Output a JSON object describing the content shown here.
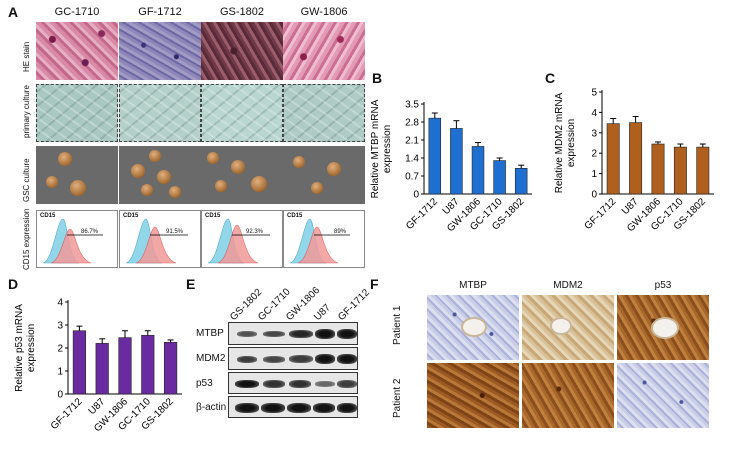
{
  "panel_letters": {
    "A": "A",
    "B": "B",
    "C": "C",
    "D": "D",
    "E": "E",
    "F": "F"
  },
  "panel_a": {
    "columns": [
      "GC-1710",
      "GF-1712",
      "GS-1802",
      "GW-1806"
    ],
    "rows": [
      "HE stain",
      "primary culture",
      "GSC culture",
      "CD15 expression"
    ],
    "flow_marker": "CD15",
    "flow_percents": [
      "86.7%",
      "91.5%",
      "92.3%",
      "89%"
    ]
  },
  "chart_data": [
    {
      "panel": "B",
      "type": "bar",
      "categories": [
        "GF-1712",
        "U87",
        "GW-1806",
        "GC-1710",
        "GS-1802"
      ],
      "values": [
        2.95,
        2.55,
        1.85,
        1.3,
        1.0
      ],
      "errors": [
        0.2,
        0.3,
        0.15,
        0.1,
        0.12
      ],
      "ylabel": "Relative MTBP mRNA expression",
      "ylabel_lines": [
        "Relative MTBP mRNA",
        "expression"
      ],
      "ylim": [
        0,
        3.5
      ],
      "yticks": [
        "0",
        "0.7",
        "1.4",
        "2.1",
        "2.8",
        "3.5"
      ],
      "color": "#1f6fd1"
    },
    {
      "panel": "C",
      "type": "bar",
      "categories": [
        "GF-1712",
        "U87",
        "GW-1806",
        "GC-1710",
        "GS-1802"
      ],
      "values": [
        3.45,
        3.5,
        2.45,
        2.3,
        2.3
      ],
      "errors": [
        0.25,
        0.3,
        0.1,
        0.15,
        0.15
      ],
      "ylabel": "Relative MDM2 mRNA expression",
      "ylabel_lines": [
        "Relative MDM2 mRNA",
        "expression"
      ],
      "ylim": [
        0,
        5
      ],
      "yticks": [
        "0",
        "1",
        "2",
        "3",
        "4",
        "5"
      ],
      "color": "#b0601e"
    },
    {
      "panel": "D",
      "type": "bar",
      "categories": [
        "GF-1712",
        "U87",
        "GW-1806",
        "GC-1710",
        "GS-1802"
      ],
      "values": [
        2.75,
        2.2,
        2.45,
        2.55,
        2.25
      ],
      "errors": [
        0.2,
        0.2,
        0.3,
        0.2,
        0.1
      ],
      "ylabel": "Relative p53 mRNA expression",
      "ylabel_lines": [
        "Relative p53 mRNA",
        "expression"
      ],
      "ylim": [
        0,
        4
      ],
      "yticks": [
        "0",
        "1",
        "2",
        "3",
        "4"
      ],
      "color": "#6a2aa0"
    }
  ],
  "panel_e": {
    "lanes": [
      "GS-1802",
      "GC-1710",
      "GW-1806",
      "U87",
      "GF-1712"
    ],
    "proteins": [
      "MTBP",
      "MDM2",
      "p53",
      "β-actin"
    ]
  },
  "panel_f": {
    "columns": [
      "MTBP",
      "MDM2",
      "p53"
    ],
    "patients": [
      "Patient 1",
      "Patient 2"
    ]
  }
}
